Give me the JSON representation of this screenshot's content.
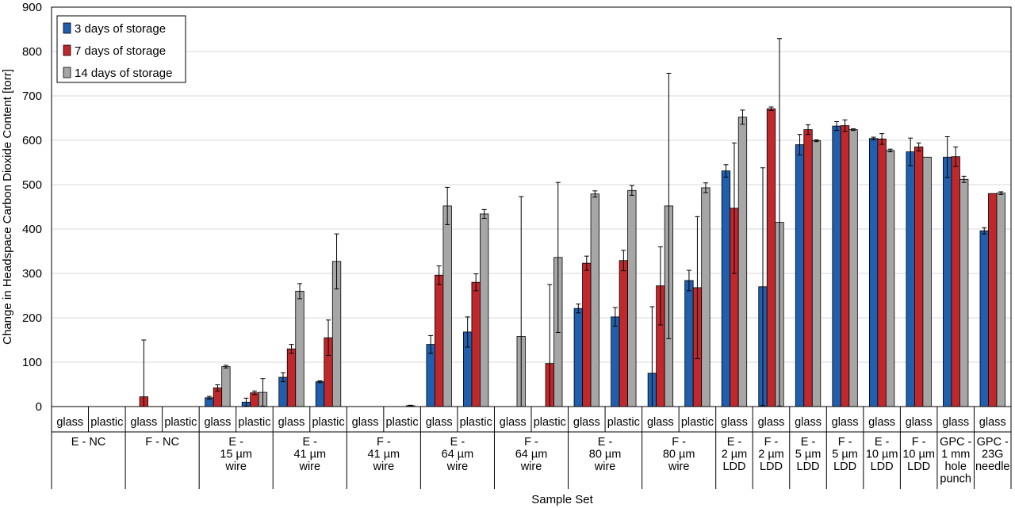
{
  "chart_data": {
    "type": "bar",
    "ylabel": "Change in Headspace Carbon Dioxide Content [torr]",
    "xlabel": "Sample Set",
    "ylim": [
      0,
      900
    ],
    "yticks": [
      0,
      100,
      200,
      300,
      400,
      500,
      600,
      700,
      800,
      900
    ],
    "grid": "horizontal",
    "legend_position": "top-left",
    "colors": [
      "#1f5fad",
      "#c0282c",
      "#a6a6a6"
    ],
    "series": [
      {
        "name": "3 days of storage"
      },
      {
        "name": "7 days of storage"
      },
      {
        "name": "14 days of storage"
      }
    ],
    "groups": [
      {
        "label": "E - NC",
        "subs": [
          {
            "label": "glass",
            "values": [
              0,
              0,
              0
            ],
            "errors": [
              0,
              0,
              0
            ]
          },
          {
            "label": "plastic",
            "values": [
              0,
              0,
              0
            ],
            "errors": [
              0,
              0,
              0
            ]
          }
        ]
      },
      {
        "label": "F - NC",
        "subs": [
          {
            "label": "glass",
            "values": [
              0,
              22,
              0
            ],
            "errors": [
              0,
              128,
              0
            ]
          },
          {
            "label": "plastic",
            "values": [
              0,
              0,
              0
            ],
            "errors": [
              0,
              0,
              0
            ]
          }
        ]
      },
      {
        "label": "E -\n15 µm\nwire",
        "subs": [
          {
            "label": "glass",
            "values": [
              20,
              42,
              90
            ],
            "errors": [
              3,
              7,
              3
            ]
          },
          {
            "label": "plastic",
            "values": [
              10,
              31,
              32
            ],
            "errors": [
              9,
              4,
              31
            ]
          }
        ]
      },
      {
        "label": "E -\n41 µm\nwire",
        "subs": [
          {
            "label": "glass",
            "values": [
              66,
              130,
              260
            ],
            "errors": [
              10,
              10,
              17
            ]
          },
          {
            "label": "plastic",
            "values": [
              56,
              155,
              327
            ],
            "errors": [
              2,
              40,
              62
            ]
          }
        ]
      },
      {
        "label": "F -\n41 µm\nwire",
        "subs": [
          {
            "label": "glass",
            "values": [
              0,
              0,
              0
            ],
            "errors": [
              0,
              0,
              0
            ]
          },
          {
            "label": "plastic",
            "values": [
              0,
              0,
              2
            ],
            "errors": [
              0,
              0,
              1
            ]
          }
        ]
      },
      {
        "label": "E -\n64 µm\nwire",
        "subs": [
          {
            "label": "glass",
            "values": [
              140,
              296,
              452
            ],
            "errors": [
              20,
              21,
              42
            ]
          },
          {
            "label": "plastic",
            "values": [
              168,
              280,
              434
            ],
            "errors": [
              34,
              19,
              10
            ]
          }
        ]
      },
      {
        "label": "F -\n64 µm\nwire",
        "subs": [
          {
            "label": "glass",
            "values": [
              0,
              0,
              158
            ],
            "errors": [
              0,
              0,
              315
            ]
          },
          {
            "label": "plastic",
            "values": [
              0,
              97,
              336
            ],
            "errors": [
              0,
              178,
              169
            ]
          }
        ]
      },
      {
        "label": "E -\n80 µm\nwire",
        "subs": [
          {
            "label": "glass",
            "values": [
              221,
              323,
              479
            ],
            "errors": [
              10,
              16,
              7
            ]
          },
          {
            "label": "plastic",
            "values": [
              202,
              329,
              487
            ],
            "errors": [
              21,
              23,
              11
            ]
          }
        ]
      },
      {
        "label": "F -\n80 µm\nwire",
        "subs": [
          {
            "label": "glass",
            "values": [
              75,
              272,
              452
            ],
            "errors": [
              150,
              88,
              299
            ]
          },
          {
            "label": "plastic",
            "values": [
              284,
              268,
              493
            ],
            "errors": [
              23,
              160,
              11
            ]
          }
        ]
      },
      {
        "label": "E -\n2 µm\nLDD",
        "subs": [
          {
            "label": "glass",
            "values": [
              531,
              447,
              652
            ],
            "errors": [
              14,
              147,
              16
            ]
          }
        ]
      },
      {
        "label": "F -\n2 µm\nLDD",
        "subs": [
          {
            "label": "glass",
            "values": [
              270,
              671,
              415
            ],
            "errors": [
              268,
              4,
              414
            ]
          }
        ]
      },
      {
        "label": "E -\n5 µm\nLDD",
        "subs": [
          {
            "label": "glass",
            "values": [
              590,
              624,
              599
            ],
            "errors": [
              23,
              11,
              2
            ]
          }
        ]
      },
      {
        "label": "F -\n5 µm\nLDD",
        "subs": [
          {
            "label": "glass",
            "values": [
              632,
              633,
              624
            ],
            "errors": [
              10,
              13,
              2
            ]
          }
        ]
      },
      {
        "label": "E -\n10 µm\nLDD",
        "subs": [
          {
            "label": "glass",
            "values": [
              604,
              603,
              577
            ],
            "errors": [
              3,
              12,
              3
            ]
          }
        ]
      },
      {
        "label": "F -\n10 µm\nLDD",
        "subs": [
          {
            "label": "glass",
            "values": [
              574,
              585,
              562
            ],
            "errors": [
              31,
              9,
              0
            ]
          }
        ]
      },
      {
        "label": "GPC -\n1 mm\nhole\npunch",
        "subs": [
          {
            "label": "glass",
            "values": [
              562,
              563,
              512
            ],
            "errors": [
              46,
              22,
              7
            ]
          }
        ]
      },
      {
        "label": "GPC -\n23G\nneedle",
        "subs": [
          {
            "label": "glass",
            "values": [
              396,
              480,
              481
            ],
            "errors": [
              7,
              0,
              3
            ]
          }
        ]
      }
    ]
  }
}
